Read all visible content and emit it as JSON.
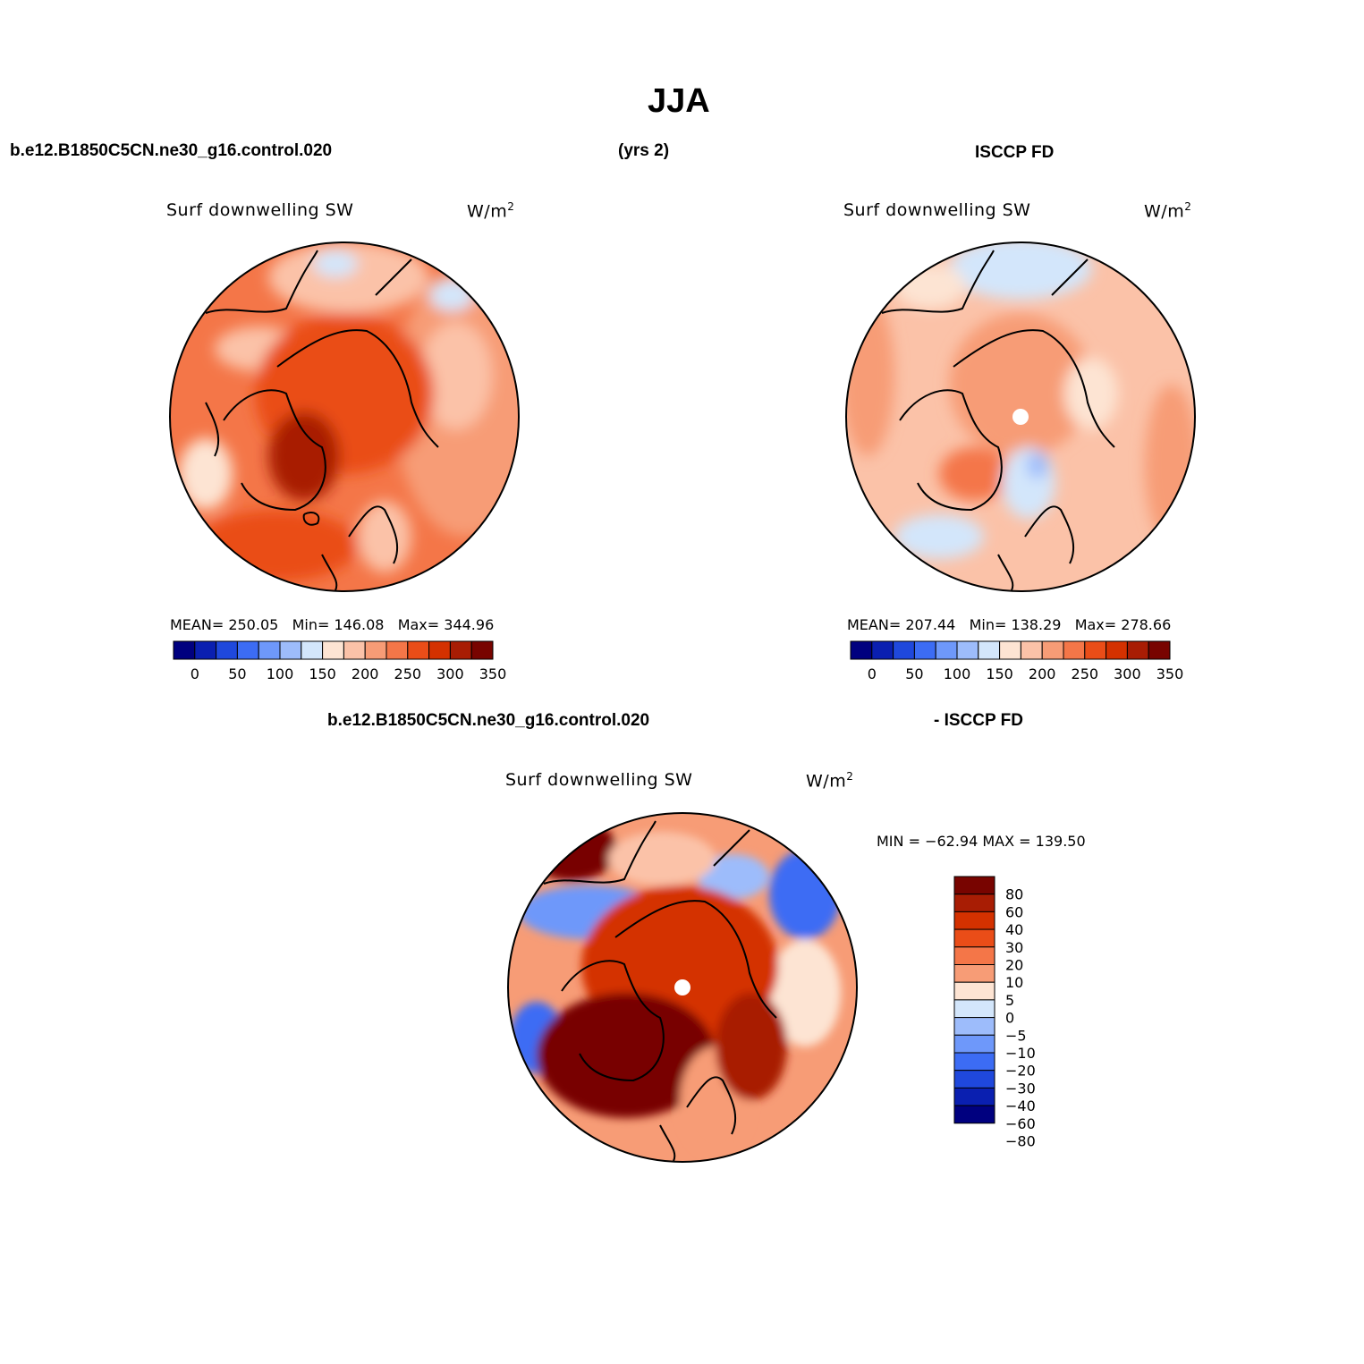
{
  "figure": {
    "title": "JJA",
    "case_name": "b.e12.B1850C5CN.ne30_g16.control.020",
    "years": "(yrs 2)",
    "obs_name": "ISCCP FD",
    "diff_case": "b.e12.B1850C5CN.ne30_g16.control.020",
    "diff_obs": "- ISCCP FD"
  },
  "panels": {
    "model": {
      "variable": "Surf downwelling SW",
      "units": "W/m",
      "units_sup": "2",
      "stats": "MEAN= 250.05   Min= 146.08   Max= 344.96"
    },
    "obs": {
      "variable": "Surf downwelling SW",
      "units": "W/m",
      "units_sup": "2",
      "stats": "MEAN= 207.44   Min= 138.29   Max= 278.66"
    },
    "diff": {
      "variable": "Surf downwelling SW",
      "units": "W/m",
      "units_sup": "2",
      "stats": "MIN = −62.94 MAX = 139.50"
    }
  },
  "colorbar_h": {
    "colors": [
      "#00007f",
      "#0a1fb0",
      "#1f48dc",
      "#3c6cf4",
      "#6e98fa",
      "#9dbcfb",
      "#d3e6fb",
      "#fde4d3",
      "#fbc2a8",
      "#f79c76",
      "#f47648",
      "#ea4d18",
      "#d43100",
      "#a81d04",
      "#780400"
    ],
    "labels": [
      "0",
      "50",
      "100",
      "150",
      "200",
      "250",
      "300",
      "350"
    ]
  },
  "colorbar_v": {
    "colors": [
      "#780400",
      "#a81d04",
      "#d43100",
      "#ea4d18",
      "#f47648",
      "#f79c76",
      "#fde4d3",
      "#d3e6fb",
      "#9dbcfb",
      "#6e98fa",
      "#3c6cf4",
      "#1f48dc",
      "#0a1fb0",
      "#00007f"
    ],
    "labels": [
      "80",
      "60",
      "40",
      "30",
      "20",
      "10",
      "5",
      "0",
      "−5",
      "−10",
      "−20",
      "−30",
      "−40",
      "−60",
      "−80"
    ]
  }
}
